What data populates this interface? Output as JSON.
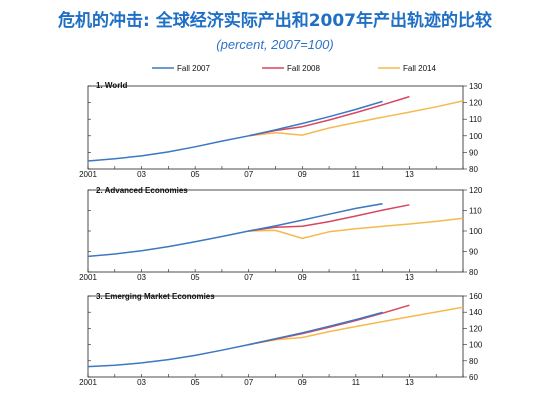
{
  "header": {
    "title": "危机的冲击: 全球经济实际产出和2007年产出轨迹的比较",
    "subtitle": "(percent, 2007=100)"
  },
  "legend": {
    "items": [
      {
        "label": "Fall 2007",
        "color": "#3b78c2"
      },
      {
        "label": "Fall 2008",
        "color": "#d8455e"
      },
      {
        "label": "Fall 2014",
        "color": "#f6b94f"
      }
    ]
  },
  "chart_data": [
    {
      "type": "line",
      "title": "1. World",
      "xlabel": "",
      "ylabel": "",
      "x_ticks": [
        "2001",
        "03",
        "05",
        "07",
        "09",
        "11",
        "13"
      ],
      "y_ticks": [
        80,
        90,
        100,
        110,
        120,
        130
      ],
      "xlim": [
        2001,
        2015
      ],
      "ylim": [
        80,
        130
      ],
      "grid": false,
      "series": [
        {
          "name": "Fall 2007",
          "color": "#3b78c2",
          "x": [
            2001,
            2002,
            2003,
            2004,
            2005,
            2006,
            2007,
            2008,
            2009,
            2010,
            2011,
            2012
          ],
          "y": [
            84.8,
            86.2,
            87.9,
            90.3,
            93.4,
            96.8,
            100,
            103.6,
            107.4,
            111.5,
            115.9,
            120.7
          ]
        },
        {
          "name": "Fall 2008",
          "color": "#d8455e",
          "x": [
            2007,
            2008,
            2009,
            2010,
            2011,
            2012,
            2013
          ],
          "y": [
            100,
            103.2,
            105.5,
            109.5,
            114,
            118.7,
            123.6
          ]
        },
        {
          "name": "Fall 2014",
          "color": "#f6b94f",
          "x": [
            2007,
            2008,
            2009,
            2010,
            2011,
            2012,
            2013,
            2014,
            2015
          ],
          "y": [
            100,
            101.8,
            100.4,
            104.7,
            108,
            111.2,
            114.3,
            117.5,
            121
          ]
        }
      ]
    },
    {
      "type": "line",
      "title": "2. Advanced Economies",
      "xlabel": "",
      "ylabel": "",
      "x_ticks": [
        "2001",
        "03",
        "05",
        "07",
        "09",
        "11",
        "13"
      ],
      "y_ticks": [
        80,
        90,
        100,
        110,
        120
      ],
      "xlim": [
        2001,
        2015
      ],
      "ylim": [
        80,
        120
      ],
      "grid": false,
      "series": [
        {
          "name": "Fall 2007",
          "color": "#3b78c2",
          "x": [
            2001,
            2002,
            2003,
            2004,
            2005,
            2006,
            2007,
            2008,
            2009,
            2010,
            2011,
            2012
          ],
          "y": [
            87.6,
            88.8,
            90.4,
            92.4,
            94.8,
            97.3,
            100,
            102.5,
            105.3,
            108.2,
            111,
            113.3
          ]
        },
        {
          "name": "Fall 2008",
          "color": "#d8455e",
          "x": [
            2007,
            2008,
            2009,
            2010,
            2011,
            2012,
            2013
          ],
          "y": [
            100,
            101.8,
            102.3,
            104.6,
            107.3,
            110.2,
            112.8
          ]
        },
        {
          "name": "Fall 2014",
          "color": "#f6b94f",
          "x": [
            2007,
            2008,
            2009,
            2010,
            2011,
            2012,
            2013,
            2014,
            2015
          ],
          "y": [
            100,
            100.3,
            96.4,
            99.6,
            101.1,
            102.3,
            103.4,
            104.7,
            106.2
          ]
        }
      ]
    },
    {
      "type": "line",
      "title": "3. Emerging Market Economies",
      "xlabel": "",
      "ylabel": "",
      "x_ticks": [
        "2001",
        "03",
        "05",
        "07",
        "09",
        "11",
        "13"
      ],
      "y_ticks": [
        60,
        80,
        100,
        120,
        140,
        160
      ],
      "xlim": [
        2001,
        2015
      ],
      "ylim": [
        60,
        160
      ],
      "grid": false,
      "series": [
        {
          "name": "Fall 2007",
          "color": "#3b78c2",
          "x": [
            2001,
            2002,
            2003,
            2004,
            2005,
            2006,
            2007,
            2008,
            2009,
            2010,
            2011,
            2012
          ],
          "y": [
            72.8,
            74.5,
            77.4,
            81.5,
            86.7,
            93.1,
            100,
            107.3,
            114.6,
            122.6,
            130.9,
            139.8
          ]
        },
        {
          "name": "Fall 2008",
          "color": "#d8455e",
          "x": [
            2007,
            2008,
            2009,
            2010,
            2011,
            2012,
            2013
          ],
          "y": [
            100,
            106.7,
            113.4,
            121.4,
            129.7,
            138.8,
            148.6
          ]
        },
        {
          "name": "Fall 2014",
          "color": "#f6b94f",
          "x": [
            2007,
            2008,
            2009,
            2010,
            2011,
            2012,
            2013,
            2014,
            2015
          ],
          "y": [
            100,
            105.9,
            108.8,
            116.1,
            122.4,
            128.4,
            134.4,
            140.2,
            146.2
          ]
        }
      ]
    }
  ]
}
